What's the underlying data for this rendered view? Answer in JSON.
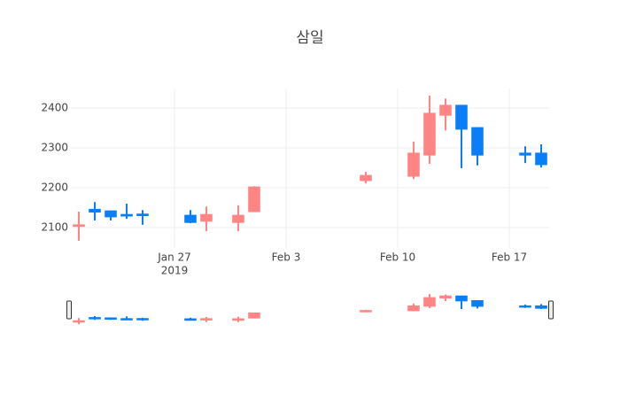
{
  "chart_data": {
    "type": "candlestick",
    "title": "삼일",
    "x": [
      "2019-01-21",
      "2019-01-22",
      "2019-01-23",
      "2019-01-24",
      "2019-01-25",
      "2019-01-28",
      "2019-01-29",
      "2019-01-31",
      "2019-02-01",
      "2019-02-08",
      "2019-02-11",
      "2019-02-12",
      "2019-02-13",
      "2019-02-14",
      "2019-02-15",
      "2019-02-18",
      "2019-02-19"
    ],
    "open": [
      2103,
      2146,
      2142,
      2133,
      2134,
      2131,
      2116,
      2113,
      2140,
      2218,
      2229,
      2282,
      2382,
      2407,
      2351,
      2287,
      2287
    ],
    "high": [
      2140,
      2164,
      2142,
      2160,
      2144,
      2144,
      2153,
      2156,
      2204,
      2240,
      2316,
      2431,
      2424,
      2407,
      2351,
      2304,
      2309
    ],
    "low": [
      2067,
      2118,
      2118,
      2122,
      2107,
      2111,
      2091,
      2091,
      2140,
      2211,
      2222,
      2260,
      2344,
      2249,
      2256,
      2262,
      2251
    ],
    "close": [
      2107,
      2139,
      2127,
      2129,
      2130,
      2113,
      2133,
      2131,
      2202,
      2231,
      2287,
      2387,
      2407,
      2347,
      2282,
      2282,
      2258
    ],
    "increasing_color": "#ff8585",
    "decreasing_color": "#0a7ef7",
    "xlim": [
      "2019-01-20 12:00",
      "2019-02-19 12:00"
    ],
    "xticks": [
      {
        "value": "2019-01-27",
        "label": [
          "Jan 27",
          "2019"
        ]
      },
      {
        "value": "2019-02-03",
        "label": [
          "Feb 3"
        ]
      },
      {
        "value": "2019-02-10",
        "label": [
          "Feb 10"
        ]
      },
      {
        "value": "2019-02-17",
        "label": [
          "Feb 17"
        ]
      }
    ],
    "ylim": [
      2049,
      2449
    ],
    "yticks": [
      2100,
      2200,
      2300,
      2400
    ],
    "grid": true,
    "rangeslider": true
  }
}
